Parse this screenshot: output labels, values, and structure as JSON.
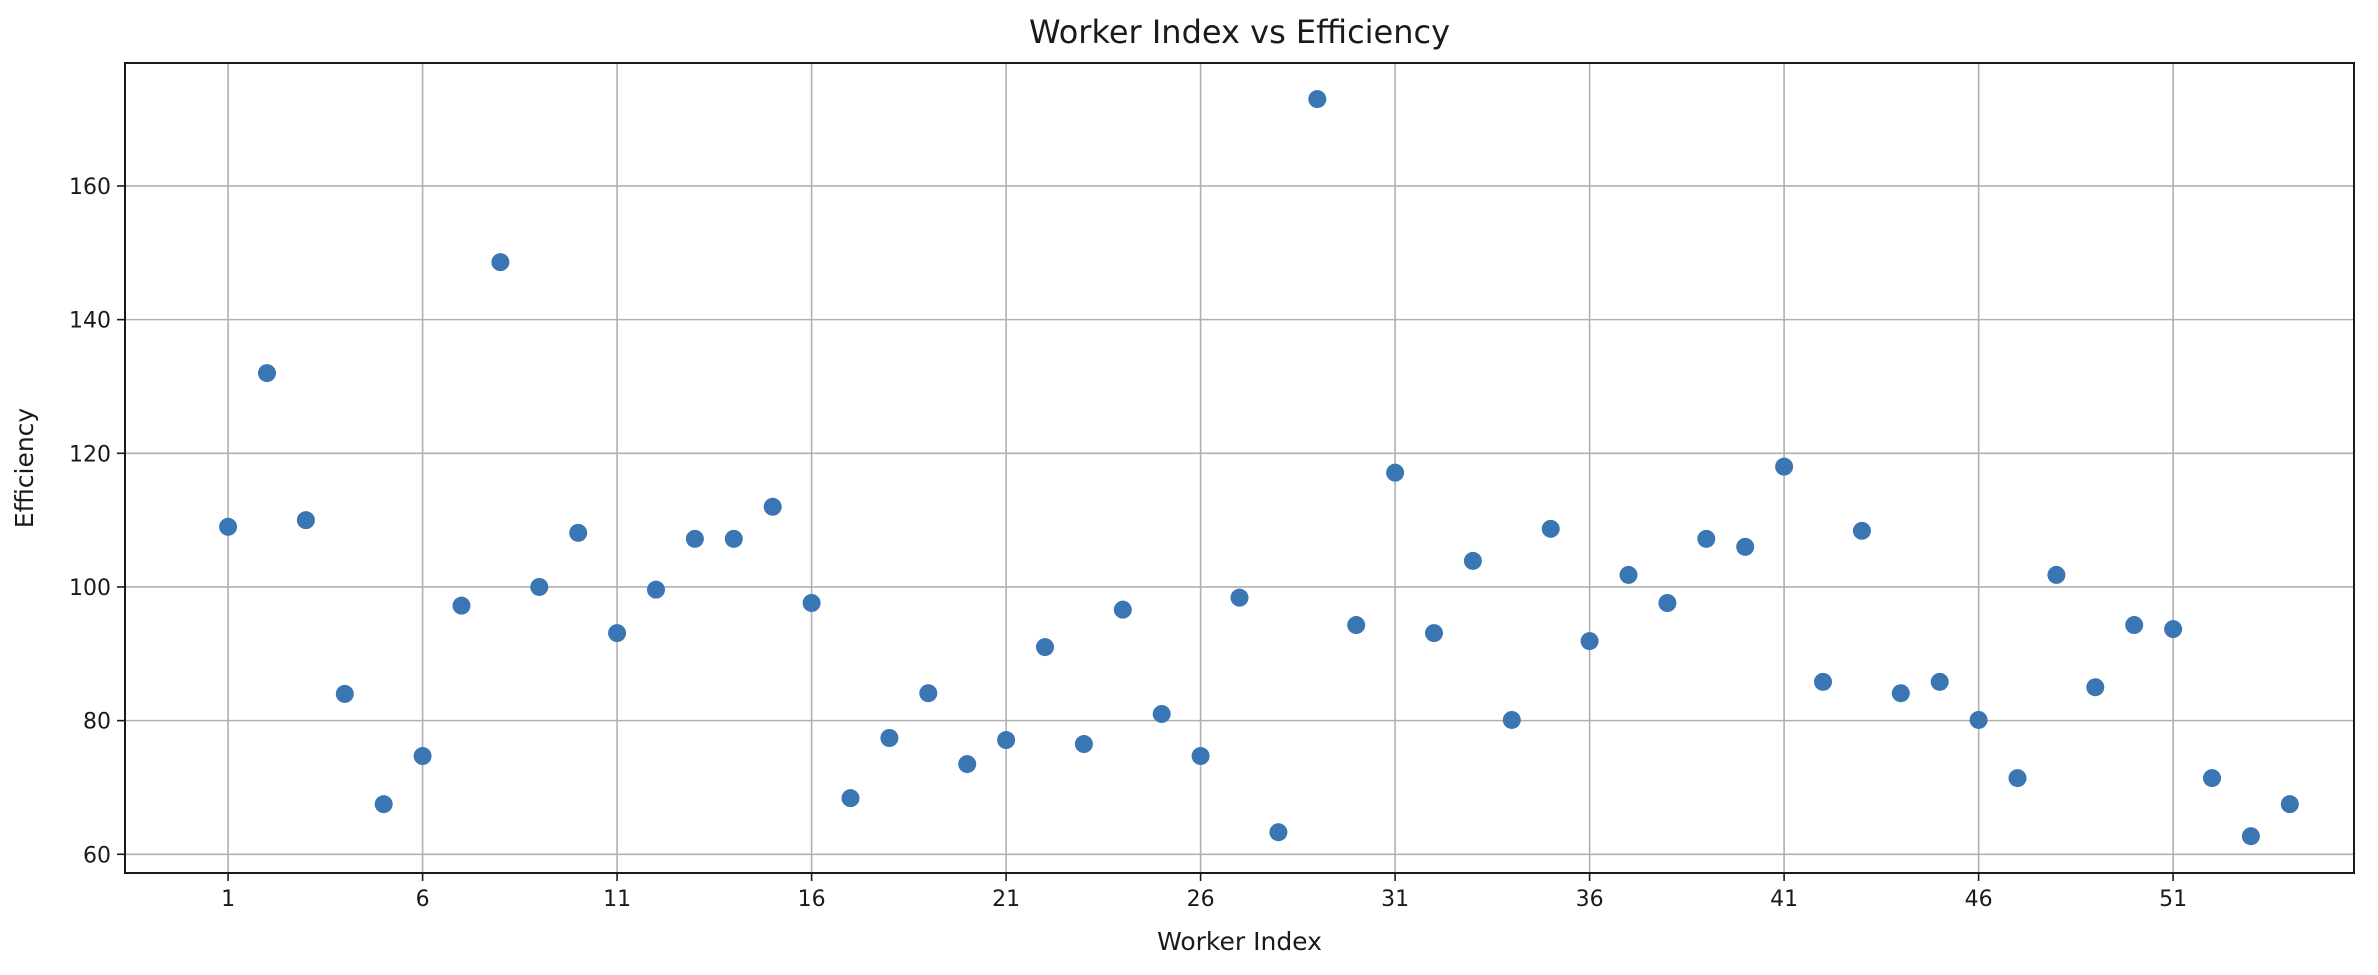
{
  "chart_data": {
    "type": "scatter",
    "title": "Worker Index vs Efficiency",
    "xlabel": "Worker Index",
    "ylabel": "Efficiency",
    "xlim": [
      -1.65,
      55.65
    ],
    "ylim": [
      57.2,
      178.4
    ],
    "xticks": [
      1,
      6,
      11,
      16,
      21,
      26,
      31,
      36,
      41,
      46,
      51
    ],
    "yticks": [
      60,
      80,
      100,
      120,
      140,
      160
    ],
    "grid": true,
    "point_color": "#3a75b4",
    "x": [
      1,
      2,
      3,
      4,
      5,
      6,
      7,
      8,
      9,
      10,
      11,
      12,
      13,
      14,
      15,
      16,
      17,
      18,
      19,
      20,
      21,
      22,
      23,
      24,
      25,
      26,
      27,
      28,
      29,
      30,
      31,
      32,
      33,
      34,
      35,
      36,
      37,
      38,
      39,
      40,
      41,
      42,
      43,
      44,
      45,
      46,
      47,
      48,
      49,
      50,
      51,
      52,
      53,
      54
    ],
    "y": [
      109,
      132,
      110,
      84,
      67.5,
      74.7,
      97.2,
      148.6,
      100,
      108.1,
      93.1,
      99.6,
      107.2,
      107.2,
      112,
      97.6,
      68.4,
      77.4,
      84.1,
      73.5,
      77.1,
      91,
      76.5,
      96.6,
      81,
      74.7,
      98.4,
      63.3,
      173,
      94.3,
      117.1,
      93.1,
      103.9,
      80.1,
      108.7,
      91.9,
      101.8,
      97.6,
      107.2,
      106,
      118,
      85.8,
      108.4,
      84.1,
      85.8,
      80.1,
      71.4,
      101.8,
      85,
      94.3,
      93.7,
      71.4,
      62.7,
      67.5
    ]
  }
}
